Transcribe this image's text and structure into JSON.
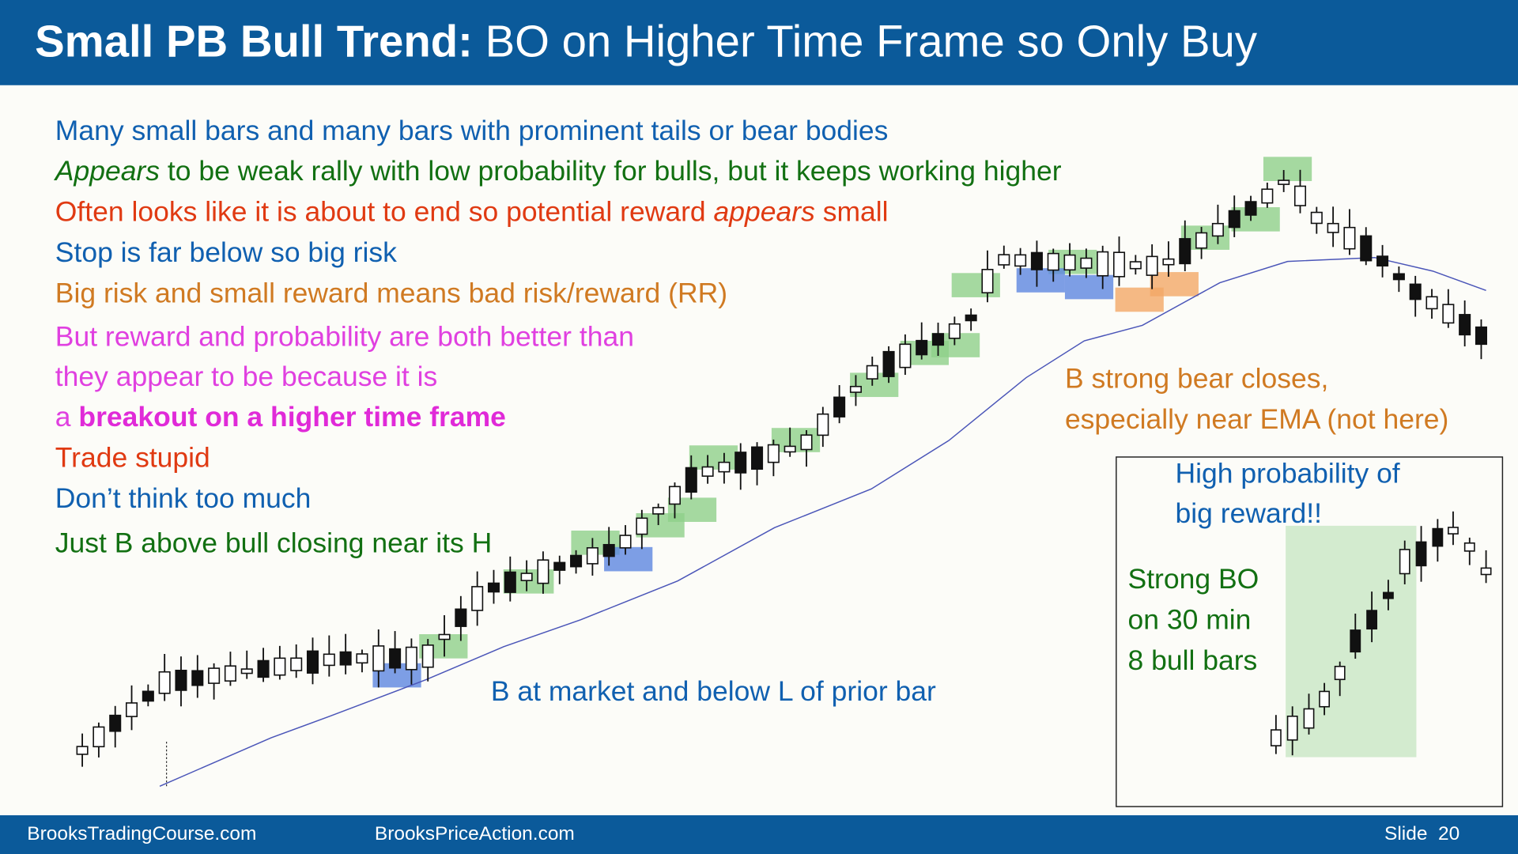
{
  "header": {
    "title_bold": "Small PB Bull Trend:",
    "title_rest": "BO on Higher Time Frame so Only Buy"
  },
  "notes": [
    [
      "Many small bars and many bars with prominent tails or bear bodies"
    ],
    [
      "Appears",
      "to be weak rally with low probability for bulls, but it keeps working higher"
    ],
    [
      "Often looks like it is about to end so potential reward",
      "appears",
      "small"
    ],
    [
      "Stop is far below so big risk"
    ],
    [
      "Big risk and small reward means bad risk/reward (RR)"
    ],
    [
      "But reward and probability are both better than"
    ],
    [
      "they appear to be because it is"
    ],
    [
      "a",
      "breakout on a higher time frame"
    ],
    [
      "Trade stupid"
    ],
    [
      "Don’t think too much"
    ],
    [
      "Just B above bull closing near its H"
    ]
  ],
  "annotations": {
    "bear_closes": [
      "B strong bear closes,",
      "especially near EMA (not here)"
    ],
    "at_market": "B at market and below L of prior bar",
    "inset_top": [
      "High probability of",
      "big reward!!"
    ],
    "inset_left": [
      "Strong BO",
      "on 30 min",
      "8 bull bars"
    ]
  },
  "footer": {
    "left": "BrooksTradingCourse.com",
    "middle": "BrooksPriceAction.com",
    "slide": "Slide  20"
  }
}
